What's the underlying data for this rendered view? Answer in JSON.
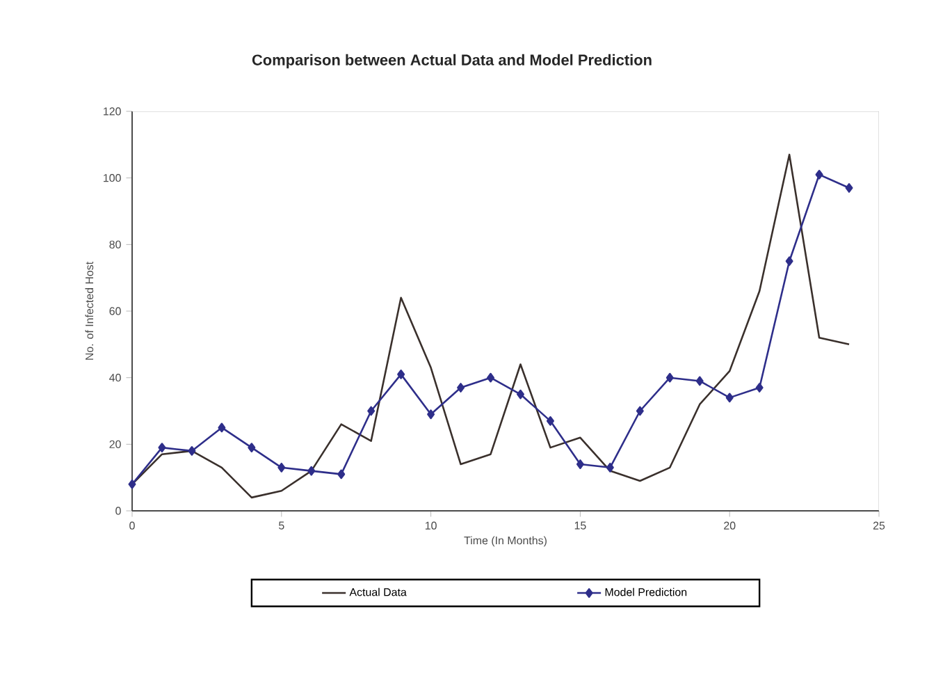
{
  "chart_data": {
    "type": "line",
    "title": "Comparison between Actual Data and Model Prediction",
    "xlabel": "Time (In Months)",
    "ylabel": "No. of Infected Host",
    "x": [
      0,
      1,
      2,
      3,
      4,
      5,
      6,
      7,
      8,
      9,
      10,
      11,
      12,
      13,
      14,
      15,
      16,
      17,
      18,
      19,
      20,
      21,
      22,
      23,
      24
    ],
    "series": [
      {
        "name": "Actual Data",
        "color": "#3a302c",
        "marker": "none",
        "values": [
          8,
          17,
          18,
          13,
          4,
          6,
          12,
          26,
          21,
          64,
          43,
          14,
          17,
          44,
          19,
          22,
          12,
          9,
          13,
          32,
          42,
          66,
          107,
          52,
          50
        ]
      },
      {
        "name": "Model Prediction",
        "color": "#2e2e8a",
        "marker": "diamond",
        "values": [
          8,
          19,
          18,
          25,
          19,
          13,
          12,
          11,
          30,
          41,
          29,
          37,
          40,
          35,
          27,
          14,
          13,
          30,
          40,
          39,
          34,
          37,
          75,
          101,
          97
        ]
      }
    ],
    "xlim": [
      0,
      25
    ],
    "xticks": [
      0,
      5,
      10,
      15,
      20,
      25
    ],
    "ylim": [
      0,
      120
    ],
    "yticks": [
      0,
      20,
      40,
      60,
      80,
      100,
      120
    ],
    "grid": false,
    "legend": "bottom",
    "line_style": "solid"
  }
}
